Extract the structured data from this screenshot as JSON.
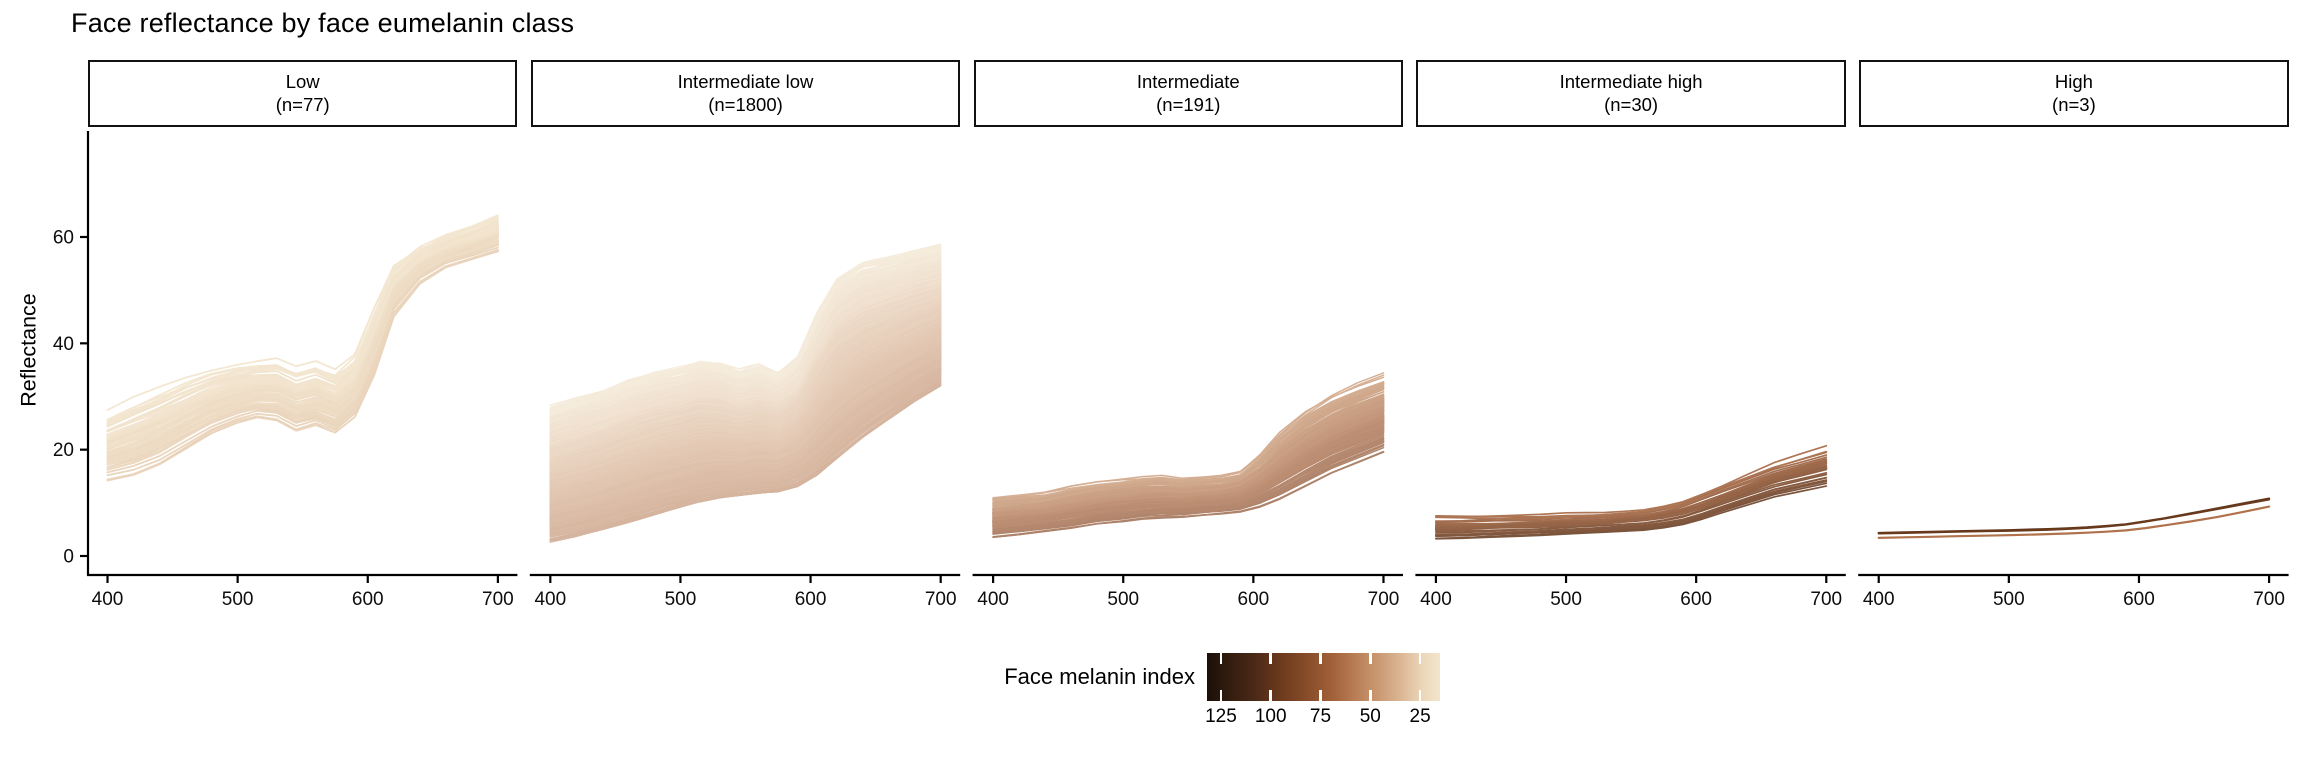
{
  "title": "Face reflectance by face eumelanin class",
  "y_axis": {
    "label": "Reflectance",
    "ticks": [
      0,
      20,
      40,
      60
    ]
  },
  "x_axis": {
    "ticks": [
      400,
      500,
      600,
      700
    ]
  },
  "legend": {
    "title": "Face melanin index",
    "ticks": [
      125,
      100,
      75,
      50,
      25
    ],
    "domain": [
      132,
      15
    ],
    "gradient": [
      {
        "p": 0.0,
        "c": "#1b0f07"
      },
      {
        "p": 0.08,
        "c": "#2f1b0d"
      },
      {
        "p": 0.2,
        "c": "#4a2817"
      },
      {
        "p": 0.32,
        "c": "#6d3b1d"
      },
      {
        "p": 0.44,
        "c": "#8a4e2b"
      },
      {
        "p": 0.54,
        "c": "#a2613a"
      },
      {
        "p": 0.64,
        "c": "#b97f57"
      },
      {
        "p": 0.74,
        "c": "#cb9a74"
      },
      {
        "p": 0.84,
        "c": "#ddb997"
      },
      {
        "p": 0.93,
        "c": "#ecd8ba"
      },
      {
        "p": 1.0,
        "c": "#f3e5cb"
      }
    ]
  },
  "chart_data": {
    "type": "line",
    "title": "Face reflectance by face eumelanin class",
    "xlabel": "",
    "ylabel": "Reflectance",
    "x_range": [
      385,
      715
    ],
    "y_range": [
      -4,
      80
    ],
    "x": [
      400,
      420,
      440,
      460,
      480,
      500,
      515,
      530,
      545,
      560,
      575,
      590,
      605,
      620,
      640,
      660,
      680,
      700
    ],
    "facets": [
      {
        "label": "Low",
        "n_label": "(n=77)",
        "n": 77,
        "y_max": [
          27,
          29.5,
          31.5,
          33.5,
          35,
          36,
          36.5,
          37,
          35.5,
          36.5,
          35,
          38,
          47,
          55,
          58.5,
          60.5,
          62,
          64
        ],
        "y_min": [
          14,
          15,
          17,
          20,
          23,
          25,
          26,
          25.5,
          23.5,
          24.5,
          23,
          26,
          34,
          45,
          51,
          54,
          55.5,
          57
        ],
        "melanin_range": [
          18,
          30
        ],
        "wiggle": 1.1,
        "stroke": 1.8,
        "opacity": 0.75
      },
      {
        "label": "Intermediate low",
        "n_label": "(n=1800)",
        "n": 1800,
        "y_max": [
          28,
          29.5,
          31,
          33,
          34.5,
          35.5,
          36.5,
          36,
          34.5,
          35.5,
          34,
          37,
          45.5,
          52,
          55,
          56,
          57,
          58
        ],
        "y_min": [
          2.5,
          3.5,
          4.8,
          6.2,
          7.6,
          9,
          10,
          10.8,
          11.2,
          11.6,
          12,
          13,
          15,
          18,
          22,
          25.5,
          29,
          32
        ],
        "melanin_range": [
          20,
          60
        ],
        "wiggle": 1.1,
        "stroke": 1.15,
        "opacity": 0.55
      },
      {
        "label": "Intermediate",
        "n_label": "(n=191)",
        "n": 191,
        "y_max": [
          11,
          11.5,
          12,
          13,
          13.8,
          14.3,
          14.8,
          15,
          14.6,
          15,
          15.2,
          16,
          19,
          23,
          27,
          30,
          32.2,
          34
        ],
        "y_min": [
          3.5,
          4,
          4.6,
          5.2,
          6,
          6.5,
          7,
          7.2,
          7.3,
          7.6,
          7.9,
          8.3,
          9.2,
          10.6,
          13,
          15.5,
          17.5,
          19.5
        ],
        "melanin_range": [
          50,
          80
        ],
        "wiggle": 0.6,
        "stroke": 1.5,
        "opacity": 0.7
      },
      {
        "label": "Intermediate high",
        "n_label": "(n=30)",
        "n": 30,
        "y_max": [
          7.5,
          7.5,
          7.6,
          7.7,
          7.8,
          8,
          8.1,
          8.3,
          8.6,
          8.9,
          9.5,
          10.5,
          12,
          13.5,
          15.5,
          17.5,
          19,
          20.5
        ],
        "y_min": [
          3,
          3.1,
          3.3,
          3.5,
          3.7,
          4,
          4.2,
          4.4,
          4.6,
          4.8,
          5.2,
          5.8,
          6.8,
          8,
          9.5,
          11,
          12,
          13
        ],
        "melanin_range": [
          68,
          100
        ],
        "wiggle": 0.45,
        "stroke": 1.7,
        "opacity": 0.85
      },
      {
        "label": "High",
        "n_label": "(n=3)",
        "n": 3,
        "y_max": [
          4.6,
          4.7,
          4.8,
          4.9,
          5,
          5.1,
          5.2,
          5.3,
          5.45,
          5.6,
          5.85,
          6.2,
          6.8,
          7.4,
          8.3,
          9.2,
          10.1,
          11
        ],
        "y_min": [
          3.2,
          3.3,
          3.4,
          3.5,
          3.6,
          3.7,
          3.8,
          3.9,
          4,
          4.15,
          4.35,
          4.6,
          5,
          5.5,
          6.2,
          7,
          8,
          9
        ],
        "melanin_range": [
          62,
          105
        ],
        "wiggle": 0.12,
        "stroke": 2.2,
        "opacity": 1,
        "u_fixed": [
          0.85,
          0.15,
          0.8
        ],
        "m_fixed": [
          100,
          62,
          96
        ]
      }
    ]
  }
}
